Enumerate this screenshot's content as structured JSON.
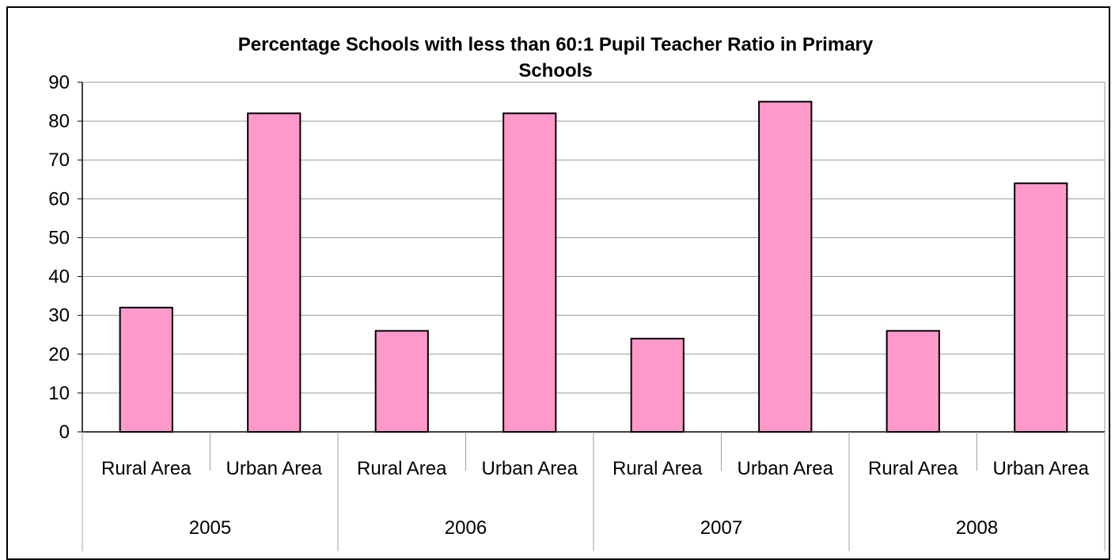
{
  "chart_data": {
    "type": "bar",
    "title_lines": [
      "Percentage Schools with less than 60:1 Pupil Teacher Ratio in Primary",
      "Schools"
    ],
    "groups": [
      {
        "label": "2005",
        "categories": [
          "Rural Area",
          "Urban Area"
        ],
        "values": [
          32,
          82
        ]
      },
      {
        "label": "2006",
        "categories": [
          "Rural Area",
          "Urban Area"
        ],
        "values": [
          26,
          82
        ]
      },
      {
        "label": "2007",
        "categories": [
          "Rural Area",
          "Urban Area"
        ],
        "values": [
          24,
          85
        ]
      },
      {
        "label": "2008",
        "categories": [
          "Rural Area",
          "Urban Area"
        ],
        "values": [
          26,
          64
        ]
      }
    ],
    "ylim": [
      0,
      90
    ],
    "yticks": [
      0,
      10,
      20,
      30,
      40,
      50,
      60,
      70,
      80,
      90
    ],
    "grid": true,
    "legend": "none",
    "bar_color": "#ff99cc",
    "xlabel": "",
    "ylabel": ""
  }
}
